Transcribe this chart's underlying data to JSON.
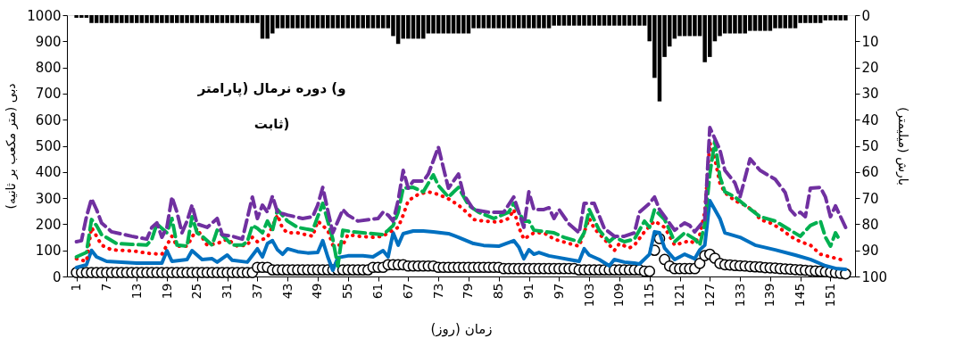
{
  "chart_data": {
    "type": "line",
    "xlabel": "زمان (روز)",
    "ylabel": "دبی (متر مکعب بر ثانیه)",
    "y2label": "بارش (میلیمتر)",
    "annotations": [
      "و) دوره نرمال (پارامتر\nثابت)"
    ],
    "xlim": [
      0,
      155
    ],
    "xticks": [
      1,
      7,
      13,
      19,
      25,
      31,
      37,
      43,
      49,
      55,
      61,
      67,
      73,
      79,
      85,
      91,
      97,
      103,
      109,
      115,
      121,
      127,
      133,
      139,
      145,
      151
    ],
    "ylim": [
      0,
      1000
    ],
    "yticks": [
      0,
      100,
      200,
      300,
      400,
      500,
      600,
      700,
      800,
      900,
      1000
    ],
    "y2lim": [
      100,
      0
    ],
    "y2ticks": [
      0,
      10,
      20,
      30,
      40,
      50,
      60,
      70,
      80,
      90,
      100
    ],
    "grid": false,
    "x": [
      1,
      2,
      3,
      4,
      5,
      6,
      7,
      8,
      9,
      10,
      11,
      12,
      13,
      14,
      15,
      16,
      17,
      18,
      19,
      20,
      21,
      22,
      23,
      24,
      25,
      26,
      27,
      28,
      29,
      30,
      31,
      32,
      33,
      34,
      35,
      36,
      37,
      38,
      39,
      40,
      41,
      42,
      43,
      44,
      45,
      46,
      47,
      48,
      49,
      50,
      51,
      52,
      53,
      54,
      55,
      56,
      57,
      58,
      59,
      60,
      61,
      62,
      63,
      64,
      65,
      66,
      67,
      68,
      69,
      70,
      71,
      72,
      73,
      74,
      75,
      76,
      77,
      78,
      79,
      80,
      81,
      82,
      83,
      84,
      85,
      86,
      87,
      88,
      89,
      90,
      91,
      92,
      93,
      94,
      95,
      96,
      97,
      98,
      99,
      100,
      101,
      102,
      103,
      104,
      105,
      106,
      107,
      108,
      109,
      110,
      111,
      112,
      113,
      114,
      115,
      116,
      117,
      118,
      119,
      120,
      121,
      122,
      123,
      124,
      125,
      126,
      127,
      128,
      129,
      130,
      131,
      132,
      133,
      134,
      135,
      136,
      137,
      138,
      139,
      140,
      141,
      142,
      143,
      144,
      145,
      146,
      147,
      148,
      149,
      150,
      151,
      152,
      153,
      154
    ],
    "series": [
      {
        "type": "bar",
        "axis": "y2",
        "color": "#000000",
        "values": [
          1,
          1,
          1,
          3,
          3,
          3,
          3,
          3,
          3,
          3,
          3,
          3,
          3,
          3,
          3,
          3,
          3,
          3,
          3,
          3,
          3,
          3,
          3,
          3,
          3,
          3,
          3,
          3,
          3,
          3,
          3,
          3,
          3,
          3,
          3,
          3,
          3,
          9,
          9,
          7,
          5,
          5,
          5,
          5,
          5,
          5,
          5,
          5,
          5,
          5,
          5,
          5,
          5,
          5,
          5,
          5,
          5,
          5,
          5,
          5,
          5,
          5,
          5,
          8,
          11,
          9,
          9,
          9,
          9,
          9,
          7,
          7,
          7,
          7,
          7,
          7,
          7,
          7,
          7,
          5,
          5,
          5,
          5,
          5,
          5,
          5,
          5,
          5,
          5,
          5,
          5,
          5,
          5,
          5,
          5,
          4,
          4,
          4,
          4,
          4,
          4,
          4,
          4,
          4,
          4,
          4,
          4,
          4,
          4,
          4,
          4,
          4,
          4,
          4,
          10,
          24,
          33,
          16,
          12,
          9,
          8,
          8,
          8,
          8,
          8,
          18,
          16,
          10,
          8,
          7,
          7,
          7,
          7,
          7,
          6,
          6,
          6,
          6,
          6,
          5,
          5,
          5,
          5,
          5,
          3,
          3,
          3,
          3,
          3,
          2,
          2,
          2,
          2,
          2
        ]
      },
      {
        "type": "scatter",
        "marker": "circle",
        "color": "#ffffff",
        "values": [
          15,
          15,
          15,
          15,
          15,
          15,
          15,
          15,
          15,
          15,
          15,
          15,
          15,
          15,
          15,
          15,
          15,
          15,
          15,
          15,
          15,
          15,
          15,
          15,
          15,
          15,
          15,
          15,
          15,
          15,
          15,
          15,
          15,
          15,
          15,
          15,
          35,
          35,
          35,
          25,
          25,
          25,
          25,
          25,
          25,
          25,
          25,
          25,
          25,
          25,
          25,
          25,
          25,
          25,
          25,
          25,
          25,
          25,
          25,
          35,
          35,
          35,
          45,
          45,
          45,
          45,
          40,
          40,
          40,
          40,
          40,
          40,
          35,
          35,
          35,
          35,
          35,
          35,
          35,
          35,
          35,
          35,
          35,
          35,
          35,
          30,
          30,
          30,
          30,
          30,
          30,
          30,
          30,
          30,
          30,
          30,
          30,
          30,
          30,
          30,
          25,
          25,
          25,
          25,
          25,
          25,
          25,
          25,
          25,
          25,
          25,
          25,
          25,
          20,
          20,
          100,
          145,
          65,
          40,
          30,
          30,
          30,
          30,
          30,
          50,
          80,
          85,
          70,
          50,
          45,
          44,
          42,
          41,
          40,
          38,
          37,
          36,
          34,
          33,
          32,
          30,
          29,
          28,
          26,
          25,
          24,
          22,
          21,
          20,
          18,
          16,
          14,
          12,
          10
        ]
      },
      {
        "line_style": "solid",
        "color": "#0070c0",
        "x": [
          1,
          3,
          4,
          5,
          7,
          10,
          13,
          18,
          19,
          20,
          23,
          24,
          26,
          28,
          29,
          31,
          32,
          35,
          37,
          38,
          39,
          40,
          41,
          42,
          43,
          45,
          47,
          49,
          50,
          51,
          52,
          53,
          55,
          58,
          60,
          62,
          63,
          64,
          65,
          66,
          68,
          70,
          72,
          75,
          77,
          80,
          82,
          85,
          88,
          89,
          90,
          91,
          92,
          93,
          95,
          97,
          99,
          101,
          102,
          103,
          105,
          107,
          108,
          110,
          112,
          113,
          115,
          116,
          117,
          118,
          120,
          122,
          124,
          125,
          126,
          127,
          129,
          130,
          133,
          136,
          140,
          144,
          147,
          150,
          152,
          154
        ],
        "values": [
          34,
          45,
          100,
          75,
          58,
          55,
          51,
          51,
          99,
          58,
          65,
          99,
          65,
          68,
          55,
          82,
          62,
          55,
          106,
          75,
          126,
          137,
          102,
          85,
          106,
          95,
          90,
          92,
          137,
          75,
          24,
          72,
          79,
          79,
          75,
          99,
          75,
          167,
          120,
          164,
          174,
          174,
          171,
          164,
          150,
          126,
          119,
          116,
          137,
          113,
          68,
          102,
          85,
          92,
          79,
          72,
          65,
          58,
          106,
          82,
          65,
          41,
          65,
          55,
          51,
          48,
          85,
          171,
          167,
          109,
          65,
          85,
          68,
          102,
          120,
          290,
          222,
          167,
          150,
          120,
          102,
          82,
          65,
          41,
          31,
          27
        ]
      },
      {
        "line_style": "dotted",
        "color": "#ff0000",
        "x": [
          1,
          3,
          4,
          5,
          6,
          8,
          11,
          13,
          15,
          18,
          19,
          20,
          21,
          23,
          24,
          25,
          26,
          27,
          29,
          31,
          33,
          35,
          36,
          37,
          39,
          41,
          42,
          43,
          45,
          48,
          49,
          51,
          52,
          54,
          55,
          57,
          60,
          62,
          63,
          65,
          66,
          67,
          69,
          71,
          73,
          75,
          77,
          79,
          80,
          82,
          85,
          87,
          88,
          89,
          90,
          92,
          94,
          96,
          99,
          101,
          103,
          104,
          106,
          108,
          109,
          111,
          112,
          114,
          116,
          118,
          119,
          120,
          123,
          124,
          125,
          126,
          127,
          128,
          129,
          130,
          132,
          134,
          136,
          137,
          139,
          141,
          143,
          145,
          147,
          149,
          151,
          153
        ],
        "values": [
          68,
          58,
          188,
          154,
          120,
          102,
          99,
          96,
          89,
          85,
          120,
          154,
          116,
          116,
          150,
          184,
          150,
          120,
          126,
          143,
          116,
          120,
          150,
          133,
          150,
          235,
          184,
          167,
          167,
          154,
          212,
          177,
          120,
          120,
          160,
          154,
          150,
          154,
          167,
          188,
          235,
          290,
          314,
          324,
          314,
          297,
          273,
          239,
          218,
          212,
          208,
          222,
          256,
          188,
          143,
          167,
          167,
          143,
          126,
          116,
          222,
          184,
          143,
          99,
          126,
          109,
          120,
          171,
          212,
          188,
          154,
          120,
          137,
          126,
          160,
          246,
          512,
          450,
          358,
          321,
          290,
          273,
          246,
          218,
          205,
          184,
          154,
          133,
          120,
          85,
          75,
          65
        ]
      },
      {
        "line_style": "dashed",
        "color": "#00b050",
        "x": [
          1,
          3,
          4,
          5,
          6,
          9,
          12,
          15,
          16,
          17,
          19,
          20,
          21,
          23,
          24,
          25,
          26,
          28,
          29,
          32,
          34,
          35,
          36,
          37,
          38,
          39,
          40,
          41,
          43,
          45,
          48,
          50,
          51,
          52,
          53,
          54,
          56,
          58,
          62,
          63,
          64,
          65,
          66,
          68,
          70,
          72,
          73,
          75,
          77,
          79,
          81,
          84,
          87,
          88,
          90,
          91,
          92,
          96,
          98,
          101,
          102,
          103,
          105,
          107,
          108,
          110,
          112,
          114,
          115,
          116,
          118,
          119,
          120,
          122,
          124,
          125,
          126,
          127,
          128,
          129,
          130,
          132,
          134,
          137,
          140,
          143,
          145,
          147,
          149,
          150,
          151,
          152,
          153
        ],
        "values": [
          75,
          92,
          218,
          195,
          160,
          126,
          123,
          120,
          143,
          201,
          167,
          222,
          120,
          116,
          229,
          167,
          154,
          120,
          177,
          120,
          120,
          133,
          195,
          184,
          167,
          212,
          177,
          256,
          212,
          188,
          177,
          280,
          212,
          143,
          40,
          177,
          171,
          167,
          160,
          177,
          195,
          246,
          338,
          341,
          324,
          389,
          348,
          304,
          341,
          273,
          246,
          222,
          246,
          280,
          212,
          212,
          177,
          167,
          150,
          133,
          167,
          256,
          177,
          133,
          150,
          133,
          143,
          212,
          188,
          256,
          218,
          177,
          133,
          167,
          143,
          120,
          201,
          392,
          519,
          382,
          324,
          304,
          273,
          229,
          212,
          177,
          154,
          195,
          212,
          150,
          116,
          167,
          133
        ]
      },
      {
        "line_style": "dashed",
        "color": "#7030a0",
        "x": [
          1,
          2,
          3,
          4,
          5,
          6,
          8,
          12,
          15,
          16,
          17,
          18,
          19,
          20,
          21,
          22,
          23,
          24,
          25,
          27,
          29,
          30,
          32,
          34,
          36,
          37,
          38,
          39,
          40,
          41,
          43,
          46,
          48,
          49,
          50,
          51,
          52,
          54,
          55,
          57,
          61,
          62,
          63,
          64,
          65,
          66,
          67,
          68,
          70,
          71,
          73,
          74,
          75,
          77,
          78,
          80,
          83,
          86,
          88,
          89,
          90,
          91,
          92,
          94,
          95,
          96,
          97,
          99,
          101,
          102,
          104,
          106,
          108,
          110,
          112,
          113,
          115,
          116,
          117,
          120,
          122,
          123,
          124,
          126,
          127,
          129,
          130,
          132,
          133,
          135,
          137,
          140,
          142,
          143,
          144,
          145,
          146,
          147,
          149,
          150,
          151,
          152,
          154
        ],
        "values": [
          133,
          137,
          229,
          297,
          256,
          205,
          171,
          154,
          143,
          188,
          205,
          150,
          188,
          304,
          246,
          167,
          212,
          273,
          201,
          188,
          222,
          160,
          154,
          143,
          304,
          222,
          273,
          246,
          307,
          246,
          235,
          222,
          229,
          273,
          341,
          253,
          167,
          256,
          235,
          212,
          222,
          246,
          235,
          212,
          290,
          406,
          338,
          365,
          365,
          392,
          495,
          416,
          338,
          392,
          314,
          256,
          246,
          246,
          304,
          246,
          188,
          324,
          256,
          256,
          263,
          222,
          256,
          201,
          167,
          280,
          280,
          184,
          154,
          154,
          167,
          246,
          280,
          304,
          256,
          177,
          205,
          195,
          171,
          218,
          570,
          485,
          406,
          358,
          304,
          450,
          406,
          372,
          321,
          256,
          235,
          246,
          229,
          338,
          341,
          304,
          229,
          270,
          188
        ]
      }
    ]
  }
}
